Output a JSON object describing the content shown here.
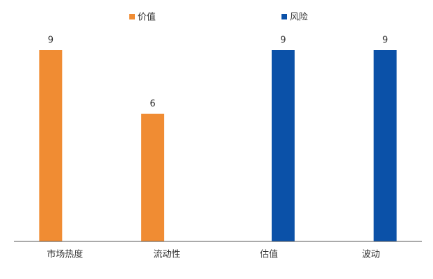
{
  "chart_data": {
    "type": "bar",
    "categories": [
      "市场热度",
      "流动性",
      "估值",
      "波动"
    ],
    "series": [
      {
        "name": "价值",
        "color": "#f08c33",
        "values": [
          9,
          6,
          null,
          null
        ]
      },
      {
        "name": "风险",
        "color": "#0b51a8",
        "values": [
          null,
          null,
          9,
          9
        ]
      }
    ],
    "ylim": [
      0,
      9
    ]
  }
}
